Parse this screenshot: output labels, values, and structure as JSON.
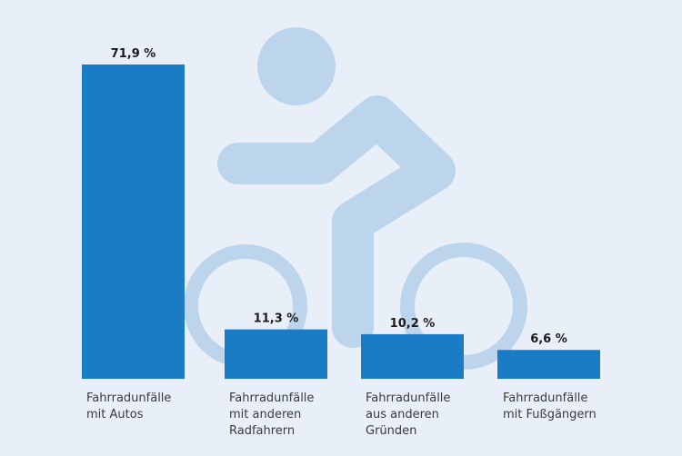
{
  "chart_data": {
    "type": "bar",
    "title": "",
    "xlabel": "",
    "ylabel": "",
    "ylim": [
      0,
      100
    ],
    "categories": [
      [
        "Fahrradunfälle",
        "mit Autos"
      ],
      [
        "Fahrradunfälle",
        "mit anderen",
        "Radfahrern"
      ],
      [
        "Fahrradunfälle",
        "aus anderen",
        "Gründen"
      ],
      [
        "Fahrradunfälle",
        "mit Fußgängern"
      ]
    ],
    "values": [
      71.9,
      11.3,
      10.2,
      6.6
    ],
    "value_labels": [
      "71,9 %",
      "11,3 %",
      "10,2 %",
      "6,6 %"
    ],
    "unit": "%",
    "background_icon": "cyclist-icon",
    "colors": {
      "bar": "#1a7cc4",
      "background": "#e9eff8",
      "icon": "#bcd5ec"
    }
  }
}
